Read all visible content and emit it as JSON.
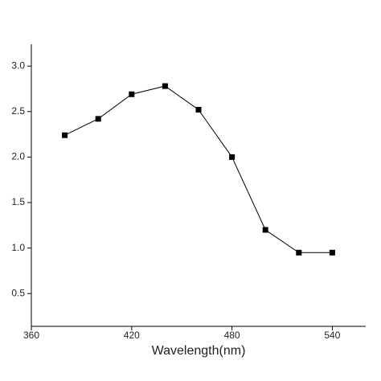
{
  "chart_data": {
    "type": "line",
    "x_label": "Wavelength(nm)",
    "x": [
      380,
      400,
      420,
      440,
      460,
      480,
      500,
      520,
      540
    ],
    "series": [
      {
        "color": "#000000",
        "values": [
          2.24,
          2.42,
          2.69,
          2.78,
          2.52,
          2.0,
          1.2,
          0.95,
          0.95
        ]
      }
    ],
    "xlim": [
      360,
      560
    ],
    "xticks": [
      360,
      420,
      480,
      540
    ],
    "ylim": [
      0.14,
      3.24
    ],
    "yticks": [
      0.5,
      {
        "value": 1.0,
        "label": "1.0"
      },
      1.5,
      {
        "value": 2.0,
        "label": "2.0"
      },
      2.5,
      {
        "value": 3.0,
        "label": "3.0"
      }
    ],
    "grid": false,
    "marker": "square"
  }
}
